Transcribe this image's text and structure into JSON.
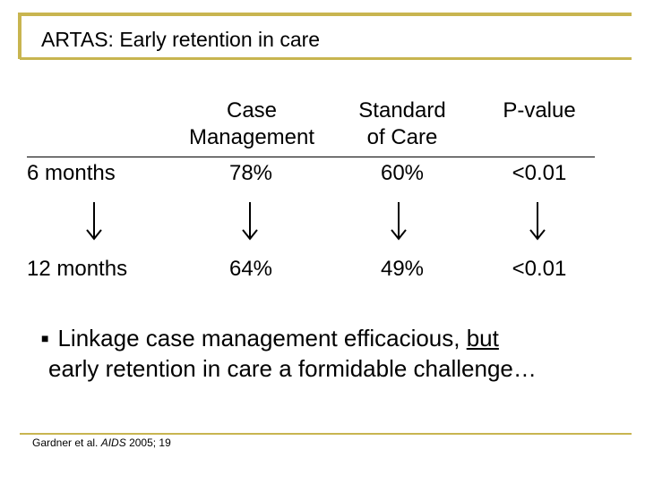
{
  "slide": {
    "title": "ARTAS: Early retention in care"
  },
  "table": {
    "headers": {
      "case_line1": "Case",
      "case_line2": "Management",
      "std_line1": "Standard",
      "std_line2": "of Care",
      "pvalue": "P-value"
    },
    "rows": [
      {
        "label": "6 months",
        "case": "78%",
        "std": "60%",
        "pvalue": "<0.01"
      },
      {
        "label": "12 months",
        "case": "64%",
        "std": "49%",
        "pvalue": "<0.01"
      }
    ]
  },
  "bullet": {
    "part1": "Linkage case management efficacious, ",
    "underlined": "but",
    "line2": "early retention in care a formidable challenge…"
  },
  "citation": {
    "author": "Gardner et al. ",
    "journal": "AIDS",
    "rest": " 2005; 19"
  },
  "colors": {
    "accent": "#c8b550",
    "text": "#000000"
  }
}
